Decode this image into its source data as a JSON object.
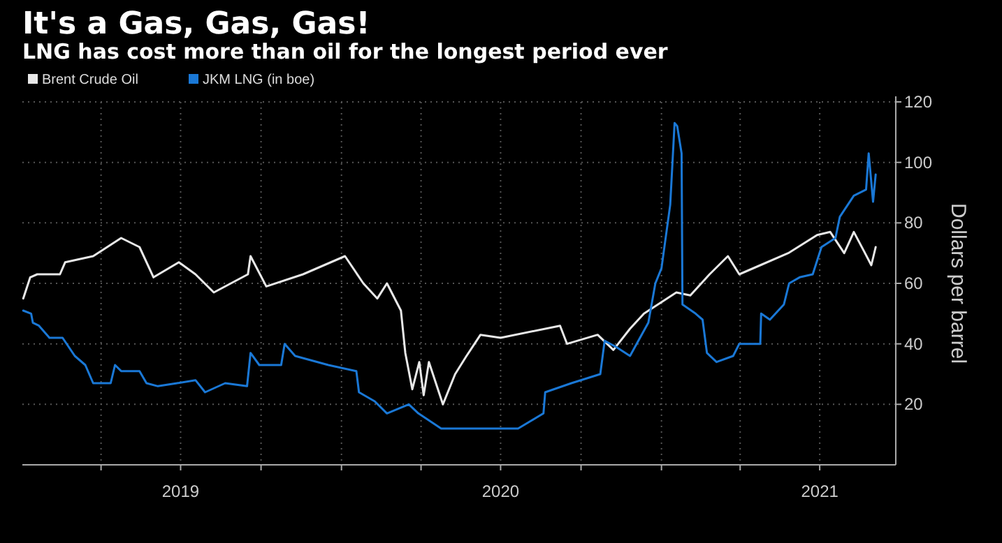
{
  "chart_data": {
    "type": "line",
    "title": "It's a Gas, Gas, Gas!",
    "subtitle": "LNG has cost more than oil for the longest period ever",
    "y2label": "Dollars per barrel",
    "xlim": [
      "2019-01-01",
      "2021-09-26"
    ],
    "xticks": [
      {
        "value": "2019-04-01",
        "label": null
      },
      {
        "value": "2019-07-01",
        "label": "2019"
      },
      {
        "value": "2019-10-01",
        "label": null
      },
      {
        "value": "2020-01-01",
        "label": null
      },
      {
        "value": "2020-04-01",
        "label": null
      },
      {
        "value": "2020-07-01",
        "label": "2020"
      },
      {
        "value": "2020-10-01",
        "label": null
      },
      {
        "value": "2021-01-01",
        "label": null
      },
      {
        "value": "2021-04-01",
        "label": null
      },
      {
        "value": "2021-07-01",
        "label": "2021"
      }
    ],
    "ylim": [
      0,
      120
    ],
    "yticks": [
      20,
      40,
      60,
      80,
      100,
      120
    ],
    "grid": true,
    "legend": "top left",
    "series": [
      {
        "name": "Brent Crude Oil",
        "color": "#e8e8e8",
        "x": [
          "2019-01-02",
          "2019-01-10",
          "2019-01-18",
          "2019-02-13",
          "2019-02-19",
          "2019-03-23",
          "2019-04-24",
          "2019-05-15",
          "2019-05-31",
          "2019-06-29",
          "2019-07-18",
          "2019-08-08",
          "2019-09-16",
          "2019-09-19",
          "2019-10-07",
          "2019-11-18",
          "2020-01-05",
          "2020-01-26",
          "2020-02-11",
          "2020-02-22",
          "2020-03-09",
          "2020-03-14",
          "2020-03-22",
          "2020-03-30",
          "2020-04-04",
          "2020-04-10",
          "2020-04-26",
          "2020-05-10",
          "2020-05-23",
          "2020-06-08",
          "2020-07-01",
          "2020-09-07",
          "2020-09-15",
          "2020-10-20",
          "2020-11-07",
          "2020-11-26",
          "2020-12-12",
          "2021-01-18",
          "2021-02-03",
          "2021-02-25",
          "2021-03-18",
          "2021-03-31",
          "2021-04-24",
          "2021-05-26",
          "2021-06-28",
          "2021-07-13",
          "2021-07-29",
          "2021-08-09",
          "2021-08-20",
          "2021-08-29",
          "2021-09-03"
        ],
        "values": [
          55,
          62,
          63,
          63,
          67,
          69,
          75,
          72,
          62,
          67,
          63,
          57,
          63,
          69,
          59,
          63,
          69,
          60,
          55,
          60,
          51,
          37,
          25,
          34,
          23,
          34,
          20,
          30,
          36,
          43,
          42,
          46,
          40,
          43,
          38,
          45,
          50,
          57,
          56,
          63,
          69,
          63,
          66,
          70,
          76,
          77,
          70,
          77,
          71,
          66,
          72
        ]
      },
      {
        "name": "JKM LNG (in boe)",
        "color": "#1a78d6",
        "x": [
          "2019-01-02",
          "2019-01-11",
          "2019-01-13",
          "2019-01-20",
          "2019-02-01",
          "2019-02-16",
          "2019-03-02",
          "2019-03-14",
          "2019-03-23",
          "2019-04-12",
          "2019-04-17",
          "2019-04-24",
          "2019-05-15",
          "2019-05-23",
          "2019-06-05",
          "2019-06-27",
          "2019-07-18",
          "2019-07-29",
          "2019-08-21",
          "2019-09-15",
          "2019-09-19",
          "2019-09-29",
          "2019-10-24",
          "2019-10-28",
          "2019-11-09",
          "2019-12-17",
          "2020-01-18",
          "2020-01-21",
          "2020-02-08",
          "2020-02-22",
          "2020-03-18",
          "2020-03-29",
          "2020-04-24",
          "2020-05-23",
          "2020-06-19",
          "2020-07-21",
          "2020-08-19",
          "2020-08-21",
          "2020-09-20",
          "2020-10-23",
          "2020-10-28",
          "2020-11-10",
          "2020-11-26",
          "2020-12-17",
          "2020-12-25",
          "2021-01-01",
          "2021-01-11",
          "2021-01-16",
          "2021-01-19",
          "2021-01-24",
          "2021-01-25",
          "2021-02-09",
          "2021-02-17",
          "2021-02-22",
          "2021-03-05",
          "2021-03-24",
          "2021-03-31",
          "2021-04-24",
          "2021-04-25",
          "2021-05-05",
          "2021-05-21",
          "2021-05-27",
          "2021-06-08",
          "2021-06-23",
          "2021-07-03",
          "2021-07-19",
          "2021-07-24",
          "2021-08-09",
          "2021-08-23",
          "2021-08-26",
          "2021-08-31",
          "2021-09-03"
        ],
        "values": [
          51,
          50,
          47,
          46,
          42,
          42,
          36,
          33,
          27,
          27,
          33,
          31,
          31,
          27,
          26,
          27,
          28,
          24,
          27,
          26,
          37,
          33,
          33,
          40,
          36,
          33,
          31,
          24,
          21,
          17,
          20,
          17,
          12,
          12,
          12,
          12,
          17,
          24,
          27,
          30,
          41,
          39,
          36,
          47,
          60,
          65,
          86,
          113,
          112,
          103,
          53,
          50,
          48,
          37,
          34,
          36,
          40,
          40,
          50,
          48,
          53,
          60,
          62,
          63,
          72,
          75,
          82,
          89,
          91,
          103,
          87,
          96
        ]
      }
    ]
  }
}
